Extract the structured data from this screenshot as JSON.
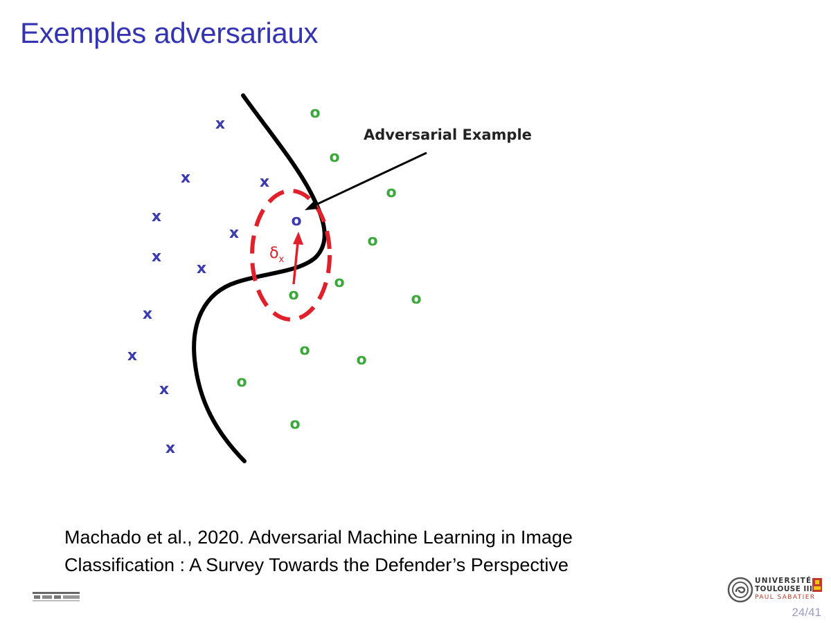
{
  "slide": {
    "title": "Exemples adversariaux",
    "page_number": "24/41"
  },
  "figure": {
    "annotation": "Adversarial Example",
    "perturbation_label": "δ",
    "perturbation_subscript": "x",
    "class_a_marker": "x",
    "class_b_marker": "o",
    "colors": {
      "class_a": "#3b3bb0",
      "class_b": "#3aa83a",
      "boundary": "#000000",
      "perturbation": "#e0202a",
      "adversarial_point": "#3b3bb0"
    }
  },
  "citation": {
    "line1": "Machado et al., 2020. Adversarial Machine Learning in Image",
    "line2": "Classification : A Survey Towards the Defender’s Perspective"
  },
  "logos": {
    "university_line1": "UNIVERSITÉ",
    "university_line2": "TOULOUSE III",
    "university_line3": "PAUL SABATIER"
  }
}
